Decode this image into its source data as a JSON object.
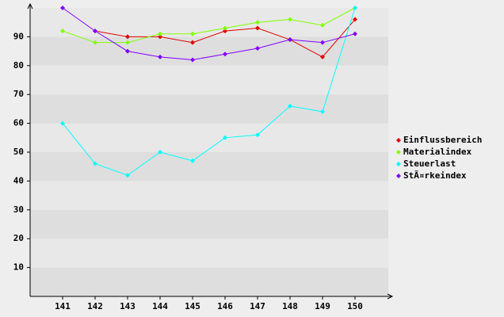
{
  "chart_data": {
    "type": "line",
    "categories": [
      "141",
      "142",
      "143",
      "144",
      "145",
      "146",
      "147",
      "148",
      "149",
      "150"
    ],
    "series": [
      {
        "name": "Einflussbereich",
        "color": "#e00000",
        "values": [
          null,
          92,
          90,
          90,
          88,
          92,
          93,
          89,
          83,
          96
        ]
      },
      {
        "name": "Materialindex",
        "color": "#80ff00",
        "values": [
          92,
          88,
          88,
          91,
          91,
          93,
          95,
          96,
          94,
          100
        ]
      },
      {
        "name": "Steuerlast",
        "color": "#00ffff",
        "values": [
          60,
          46,
          42,
          50,
          47,
          55,
          56,
          66,
          64,
          100
        ]
      },
      {
        "name": "StÃ¤rkeindex",
        "color": "#8000ff",
        "values": [
          100,
          92,
          85,
          83,
          82,
          84,
          86,
          89,
          88,
          91
        ]
      }
    ],
    "ylim": [
      0,
      100
    ],
    "yticks": [
      10,
      20,
      30,
      40,
      50,
      60,
      70,
      80,
      90
    ],
    "grid": true,
    "legend": "right"
  }
}
